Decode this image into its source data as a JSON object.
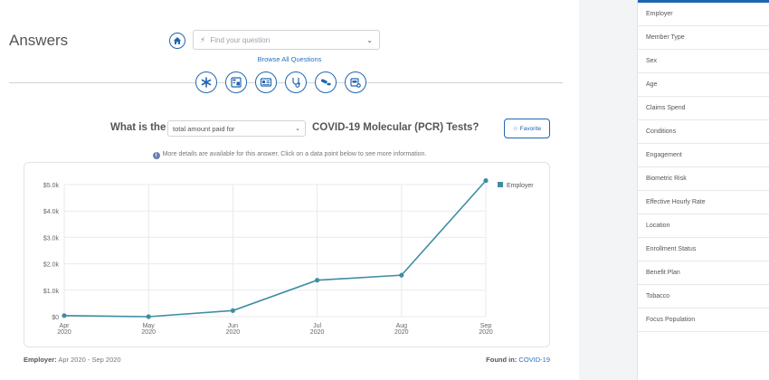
{
  "header": {
    "title": "Answers"
  },
  "search": {
    "placeholder": "Find your question"
  },
  "browse_label": "Browse All Questions",
  "categories": [
    {
      "icon": "asterisk-icon",
      "label": ""
    },
    {
      "icon": "pharmacy-icon",
      "label": ""
    },
    {
      "icon": "id-card-icon",
      "label": ""
    },
    {
      "icon": "stethoscope-icon",
      "label": ""
    },
    {
      "icon": "pills-icon",
      "label": ""
    },
    {
      "icon": "medical-kit-icon",
      "label": ""
    }
  ],
  "question": {
    "prefix": "What is the",
    "selected": "total amount paid for",
    "suffix": "COVID-19 Molecular (PCR) Tests?",
    "favorite": "Favorite"
  },
  "info": "More details are available for this answer. Click on a data point below to see more information.",
  "chart_data": {
    "type": "line",
    "categories": [
      [
        "Apr",
        "2020"
      ],
      [
        "May",
        "2020"
      ],
      [
        "Jun",
        "2020"
      ],
      [
        "Jul",
        "2020"
      ],
      [
        "Aug",
        "2020"
      ],
      [
        "Sep",
        "2020"
      ]
    ],
    "y_ticks": [
      "$0",
      "$1.0k",
      "$2.0k",
      "$3.0k",
      "$4.0k",
      "$5.0k"
    ],
    "ylim": [
      0,
      5000
    ],
    "grid": true,
    "legend": "top-right",
    "series": [
      {
        "name": "Employer",
        "color": "#3e8ea3",
        "values": [
          40,
          0,
          230,
          1380,
          1570,
          5150
        ]
      }
    ]
  },
  "footer": {
    "left_label": "Employer:",
    "left_value": "Apr 2020 - Sep 2020",
    "right_label": "Found in:",
    "right_value": "COVID-19"
  },
  "sidebar": {
    "items": [
      "Employer",
      "Member Type",
      "Sex",
      "Age",
      "Claims Spend",
      "Conditions",
      "Engagement",
      "Biometric Risk",
      "Effective Hourly Rate",
      "Location",
      "Enrollment Status",
      "Benefit Plan",
      "Tobacco",
      "Focus Population"
    ]
  },
  "colors": {
    "accent": "#1f66b0",
    "link": "#2573c2",
    "series": "#3e8ea3"
  }
}
